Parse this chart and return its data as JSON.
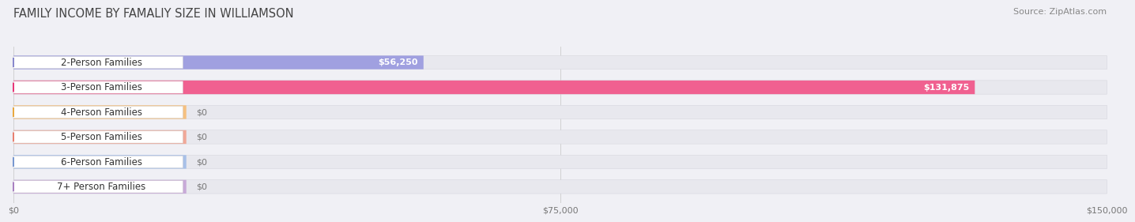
{
  "title": "FAMILY INCOME BY FAMALIY SIZE IN WILLIAMSON",
  "source": "Source: ZipAtlas.com",
  "categories": [
    "2-Person Families",
    "3-Person Families",
    "4-Person Families",
    "5-Person Families",
    "6-Person Families",
    "7+ Person Families"
  ],
  "values": [
    56250,
    131875,
    0,
    0,
    0,
    0
  ],
  "bar_colors": [
    "#a0a0e0",
    "#f06090",
    "#f5c080",
    "#f0a898",
    "#a8c0e8",
    "#c8aad8"
  ],
  "dot_colors": [
    "#8888cc",
    "#e83878",
    "#e8a840",
    "#e88070",
    "#7898d0",
    "#a880c0"
  ],
  "label_bg_colors": [
    "#ffffff",
    "#ffffff",
    "#ffffff",
    "#ffffff",
    "#ffffff",
    "#ffffff"
  ],
  "value_labels": [
    "$56,250",
    "$131,875",
    "$0",
    "$0",
    "$0",
    "$0"
  ],
  "xlim": [
    0,
    150000
  ],
  "xticks": [
    0,
    75000,
    150000
  ],
  "xticklabels": [
    "$0",
    "$75,000",
    "$150,000"
  ],
  "background_color": "#f0f0f5",
  "bar_bg_color": "#e8e8ee",
  "title_fontsize": 10.5,
  "source_fontsize": 8,
  "label_fontsize": 8.5,
  "value_fontsize": 8,
  "tick_fontsize": 8
}
